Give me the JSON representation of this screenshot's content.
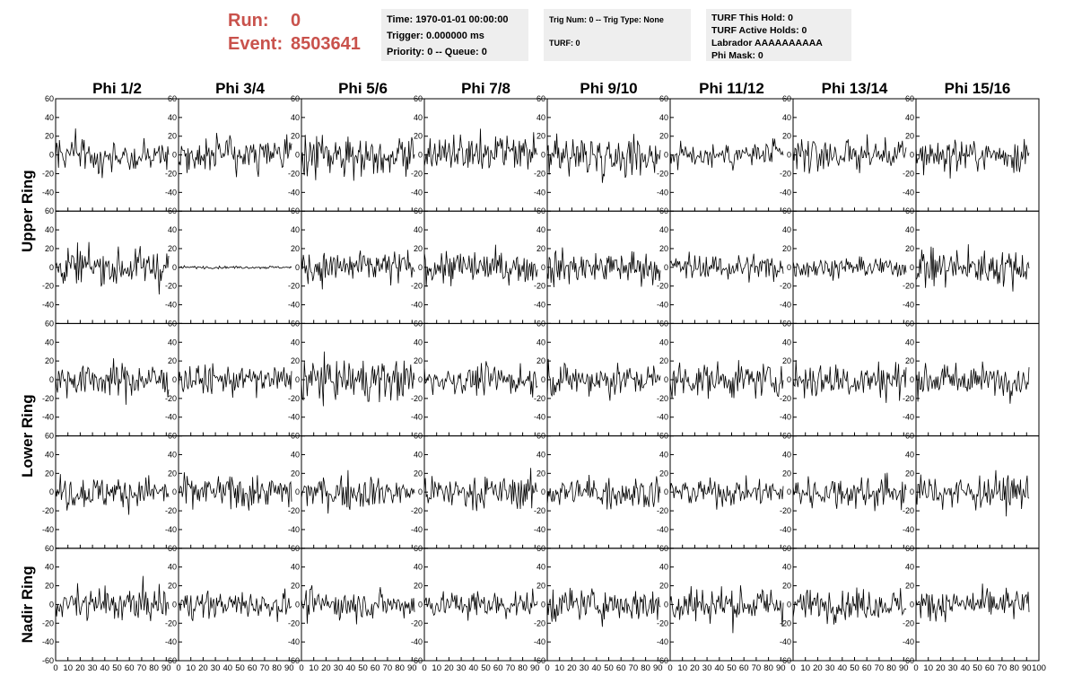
{
  "header": {
    "run_label": "Run:",
    "run_value": "0",
    "event_label": "Event:",
    "event_value": "8503641"
  },
  "info": {
    "time": "Time: 1970-01-01 00:00:00",
    "trigger": "Trigger: 0.000000 ms",
    "priority": "Priority: 0 -- Queue: 0",
    "trig_num": "Trig Num: 0 -- Trig Type: None",
    "turf": "TURF: 0",
    "turf_this_hold": "TURF This Hold: 0",
    "turf_active_holds": "TURF Active Holds: 0",
    "labrador": "Labrador AAAAAAAAAA",
    "phi_mask": "Phi Mask: 0"
  },
  "colors": {
    "title_red": "#c9524c",
    "info_bg": "#eeeeee",
    "trace": "#000000"
  },
  "chart_data": {
    "type": "line",
    "columns": [
      "Phi 1/2",
      "Phi 3/4",
      "Phi 5/6",
      "Phi 7/8",
      "Phi 9/10",
      "Phi 11/12",
      "Phi 13/14",
      "Phi 15/16"
    ],
    "rows": [
      {
        "label": "Upper Ring",
        "subrows": 2
      },
      {
        "label": "Lower Ring",
        "subrows": 2
      },
      {
        "label": "Nadir Ring",
        "subrows": 1
      }
    ],
    "xlim": [
      0,
      100
    ],
    "ylim": [
      -60,
      60
    ],
    "yticks": [
      -60,
      -40,
      -20,
      0,
      20,
      40,
      60
    ],
    "xticks": [
      0,
      10,
      20,
      30,
      40,
      50,
      60,
      70,
      80,
      90,
      100
    ],
    "samples_per_trace": 120,
    "trace_amplitude_scale": [
      [
        1.0,
        1.0,
        1.2,
        1.1,
        1.2,
        0.8,
        1.0,
        1.0
      ],
      [
        1.1,
        0.08,
        1.0,
        1.0,
        1.0,
        0.8,
        0.6,
        1.1
      ],
      [
        1.0,
        0.9,
        1.2,
        0.9,
        1.0,
        1.0,
        1.2,
        0.9
      ],
      [
        1.0,
        1.0,
        1.0,
        1.0,
        1.0,
        0.8,
        1.0,
        1.0
      ],
      [
        1.0,
        0.8,
        0.9,
        0.8,
        1.0,
        1.1,
        0.9,
        0.9
      ]
    ]
  }
}
